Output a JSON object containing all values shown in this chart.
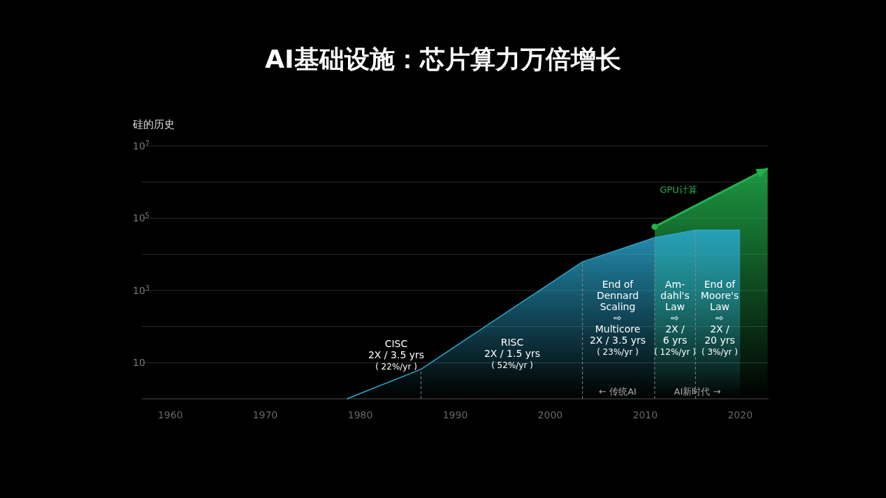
{
  "chart_data": {
    "type": "area",
    "title": "AI基础设施：芯片算力万倍增长",
    "ylabel": "硅的历史",
    "log": true,
    "x": [
      1978.6,
      1986.4,
      2003.4,
      2011.0,
      2015.3,
      2020.0
    ],
    "series": [
      {
        "color": "#2aa8d0",
        "values": [
          1,
          6.6,
          6200,
          29000,
          47000,
          47000
        ]
      },
      {
        "color": "#22b14c",
        "x": [
          2011.0,
          2022.9
        ],
        "values": [
          58000,
          2400000
        ]
      }
    ],
    "xlim": [
      1957,
      2023
    ],
    "xticks": [
      1960,
      1970,
      1980,
      1990,
      2000,
      2010,
      2020
    ],
    "ylim": [
      1,
      10000000
    ],
    "yticks": [
      {
        "value": 1,
        "label": null
      },
      {
        "value": 10,
        "label": "10"
      },
      {
        "value": 100,
        "label": null
      },
      {
        "value": 1000,
        "label": "10$^{3}$"
      },
      {
        "value": 10000,
        "label": null
      },
      {
        "value": 100000,
        "label": "10$^{5}$"
      },
      {
        "value": 1000000,
        "label": null
      },
      {
        "value": 10000000,
        "label": "10$^{7}$"
      }
    ],
    "grid": "y",
    "ref_lines": [
      {
        "axis": "x",
        "value": 1986.4,
        "line_style": "dashed"
      },
      {
        "axis": "x",
        "value": 2003.4,
        "line_style": "dashed"
      },
      {
        "axis": "x",
        "value": 2011.0,
        "line_style": "dashed"
      },
      {
        "axis": "x",
        "value": 2015.3,
        "line_style": "dashed"
      }
    ],
    "annotations": [
      "CISC\n2X / 3.5 yrs\n( 22%/yr )",
      "RISC\n2X / 1.5 yrs\n( 52%/yr )",
      "End of\nDennard\nScaling\n⇨\nMulticore\n2X / 3.5 yrs\n( 23%/yr )",
      "Am-\ndahl's\nLaw\n⇨\n2X /\n6 yrs\n( 12%/yr )",
      "End of\nMoore's\nLaw\n⇨\n2X /\n20 yrs\n( 3%/yr )",
      "←  传统AI",
      "AI新时代  →",
      "GPU计算"
    ]
  }
}
